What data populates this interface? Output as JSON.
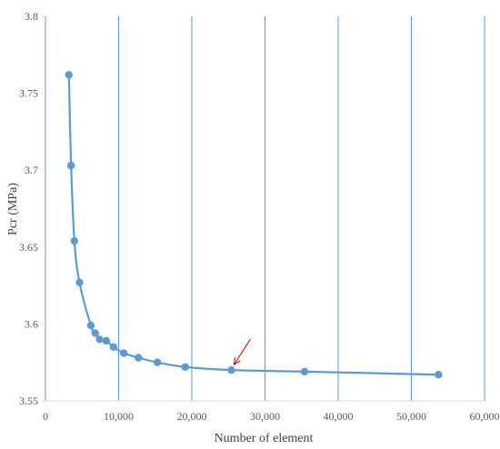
{
  "chart_data": {
    "type": "line",
    "title": "",
    "xlabel": "Number of element",
    "ylabel": "Pcr (MPa)",
    "xlim": [
      0,
      60000
    ],
    "ylim": [
      3.55,
      3.8
    ],
    "x_ticks": [
      0,
      10000,
      20000,
      30000,
      40000,
      50000,
      60000
    ],
    "x_tick_labels": [
      "0",
      "10,000",
      "20,000",
      "30,000",
      "40,000",
      "50,000",
      "60,000"
    ],
    "y_ticks": [
      3.55,
      3.6,
      3.65,
      3.7,
      3.75,
      3.8
    ],
    "y_tick_labels": [
      "3.55",
      "3.6",
      "3.65",
      "3.7",
      "3.75",
      "3.8"
    ],
    "grid": "vertical",
    "legend": "none",
    "series": [
      {
        "x": [
          3200,
          3500,
          3950,
          4650,
          6200,
          6800,
          7400,
          8300,
          9300,
          10700,
          12700,
          15300,
          19100,
          25400,
          35400,
          53700
        ],
        "y": [
          3.762,
          3.703,
          3.654,
          3.627,
          3.599,
          3.594,
          3.59,
          3.589,
          3.585,
          3.581,
          3.578,
          3.575,
          3.572,
          3.57,
          3.569,
          3.567
        ],
        "color": "#5b9bd5"
      }
    ],
    "annotation": {
      "type": "arrow",
      "points_to_x": 25400,
      "points_to_y": 3.57,
      "color": "#c00000"
    }
  }
}
